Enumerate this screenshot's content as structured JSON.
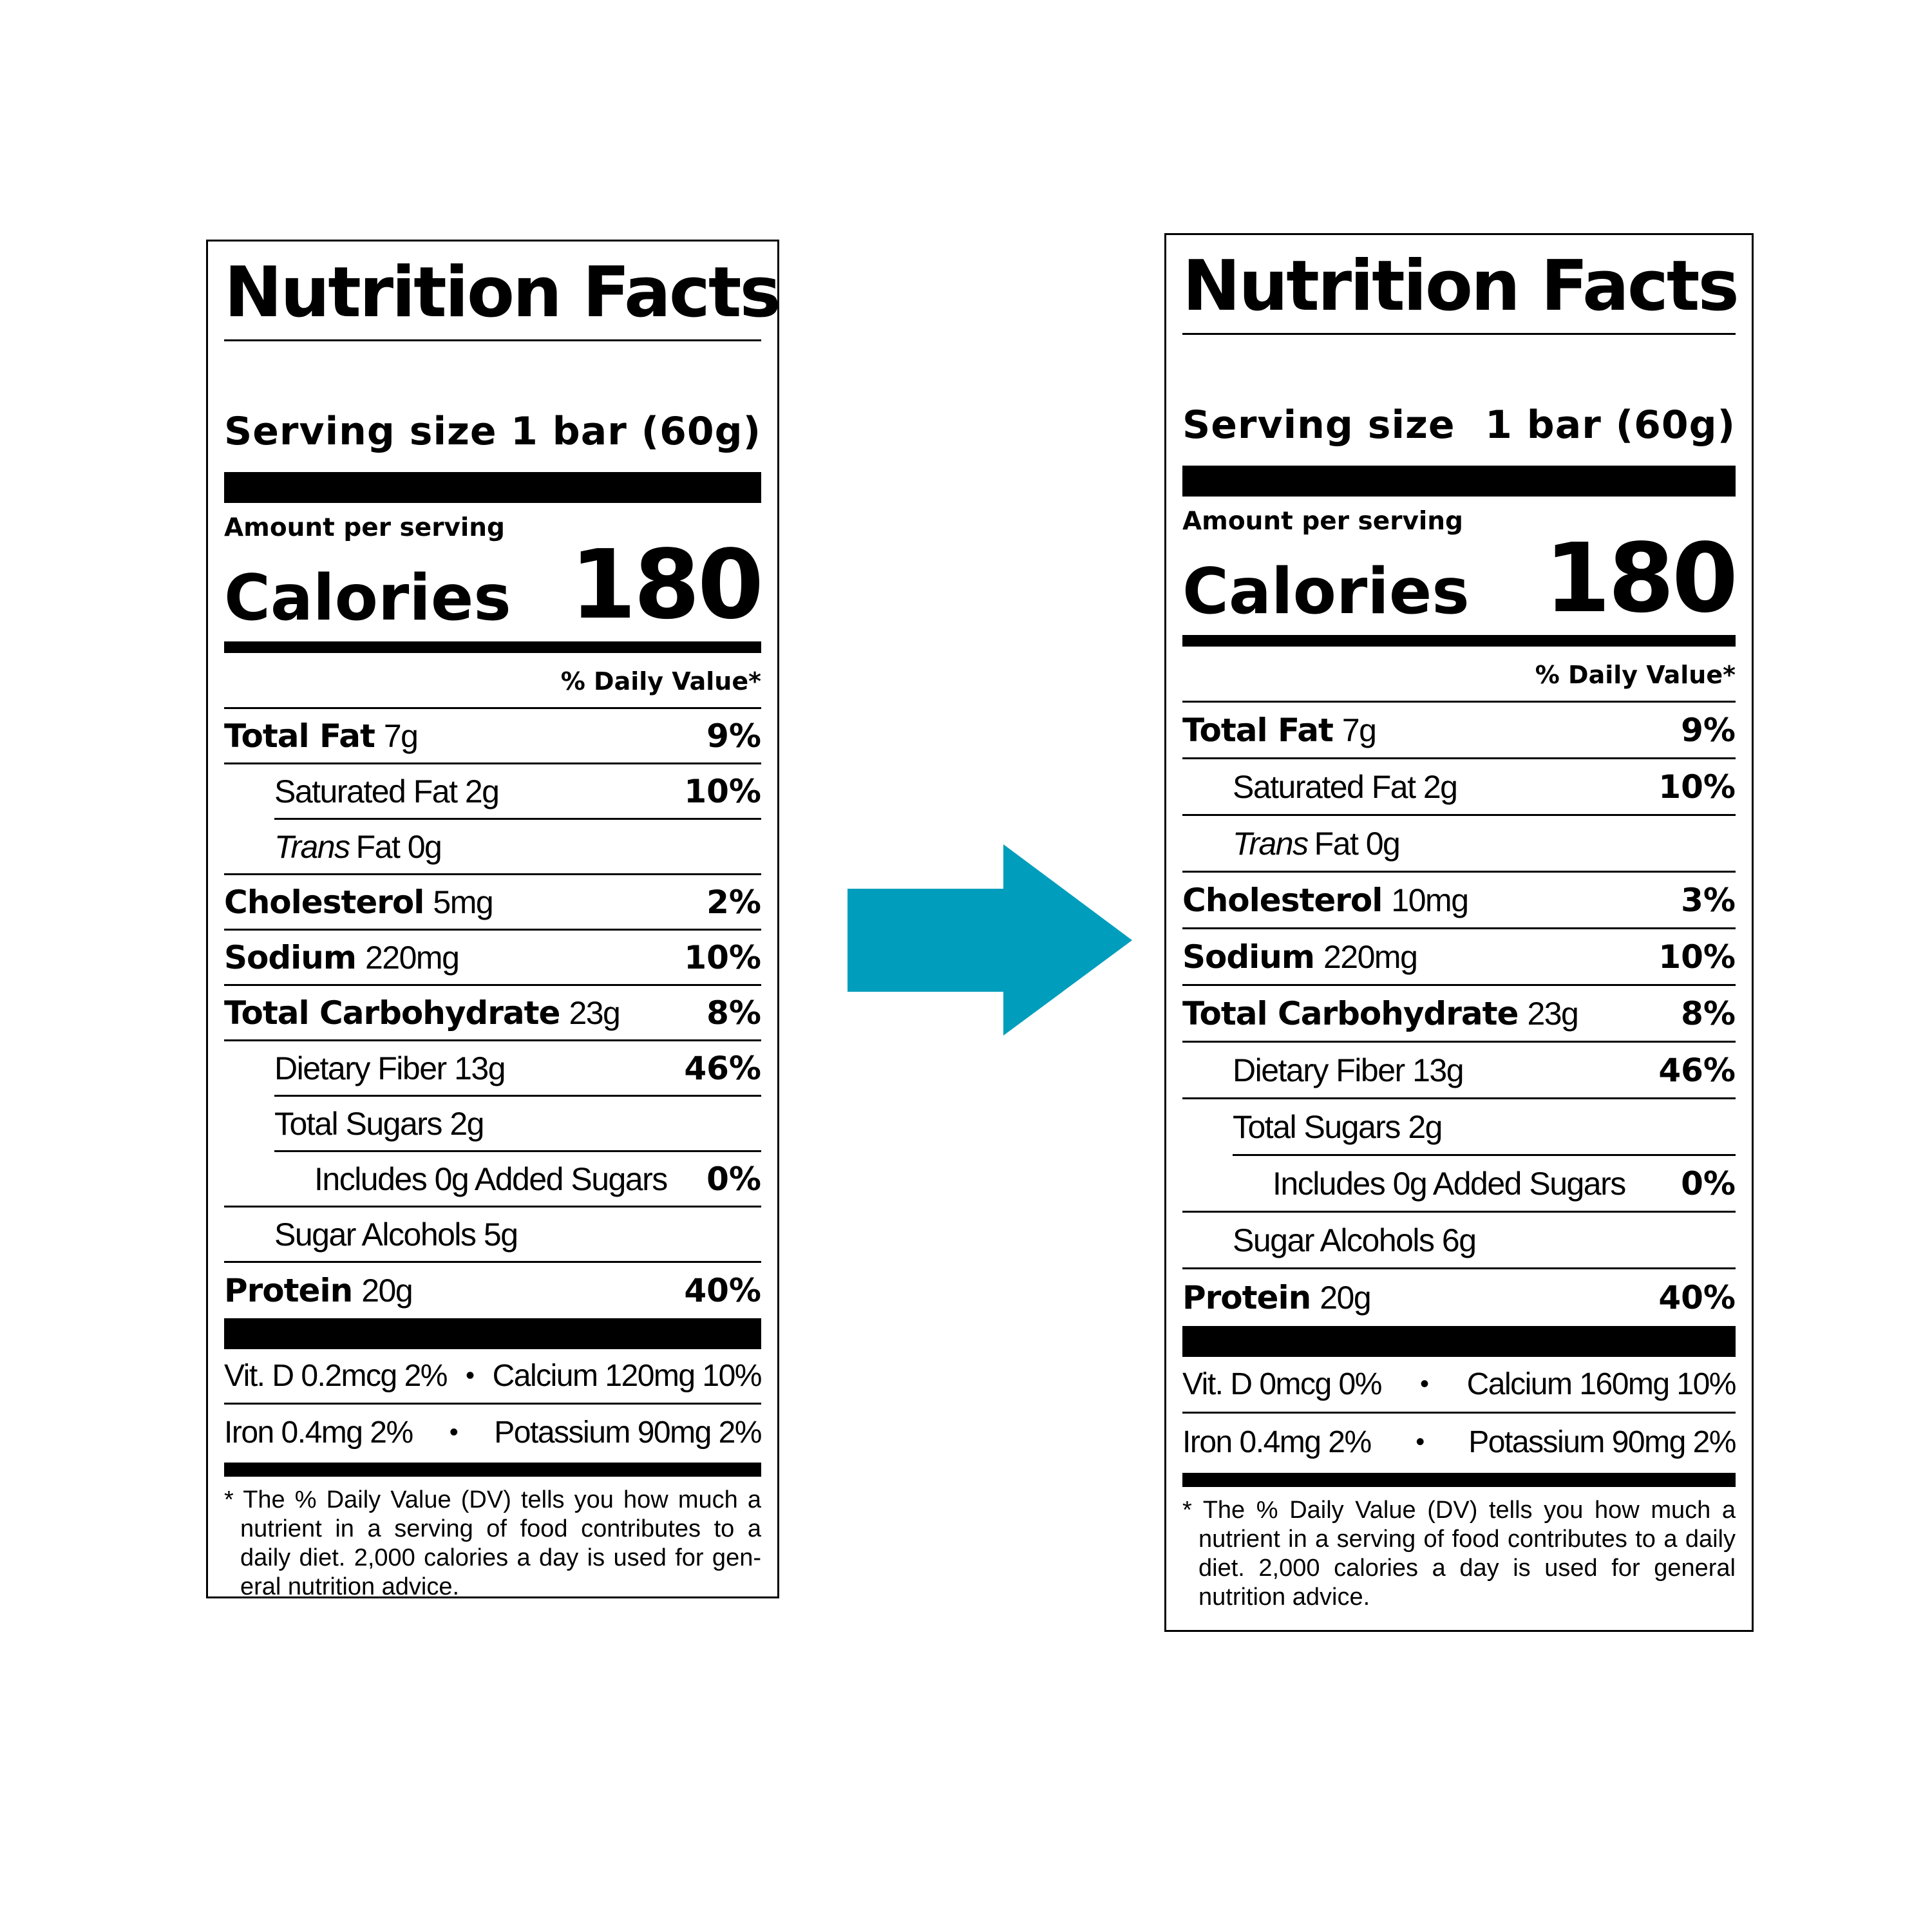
{
  "arrow": {
    "color": "#009ebc"
  },
  "labels": {
    "before": {
      "title": "Nutrition Facts",
      "serving_label": "Serving size",
      "serving_value": "1 bar (60g)",
      "amount_per_serving": "Amount per serving",
      "calories_label": "Calories",
      "calories_value": "180",
      "dv_header": "% Daily Value*",
      "total_fat": {
        "label": "Total Fat",
        "amount": "7g",
        "dv": "9%"
      },
      "saturated_fat": {
        "label": "Saturated Fat 2g",
        "dv": "10%"
      },
      "trans_fat": {
        "italic": "Trans",
        "label": "Fat 0g"
      },
      "cholesterol": {
        "label": "Cholesterol",
        "amount": "5mg",
        "dv": "2%"
      },
      "sodium": {
        "label": "Sodium",
        "amount": "220mg",
        "dv": "10%"
      },
      "total_carb": {
        "label": "Total Carbohydrate",
        "amount": "23g",
        "dv": "8%"
      },
      "dietary_fiber": {
        "label": "Dietary Fiber 13g",
        "dv": "46%"
      },
      "total_sugars": {
        "label": "Total Sugars 2g"
      },
      "added_sugars": {
        "label": "Includes 0g Added Sugars",
        "dv": "0%"
      },
      "sugar_alcohols": {
        "label": "Sugar Alcohols 5g"
      },
      "protein": {
        "label": "Protein",
        "amount": "20g",
        "dv": "40%"
      },
      "vitamins": {
        "vit_d": "Vit. D 0.2mcg 2%",
        "calcium": "Calcium 120mg 10%",
        "iron": "Iron 0.4mg 2%",
        "potassium": "Potassium 90mg 2%",
        "separator": "•"
      },
      "footnote": "* The % Daily Value (DV) tells you how much a nutrient in a serving of food contributes to a daily diet. 2,000 calories a day is used for gen-eral nutrition advice."
    },
    "after": {
      "title": "Nutrition Facts",
      "serving_label": "Serving size",
      "serving_value": "1 bar (60g)",
      "amount_per_serving": "Amount per serving",
      "calories_label": "Calories",
      "calories_value": "180",
      "dv_header": "% Daily Value*",
      "total_fat": {
        "label": "Total Fat",
        "amount": "7g",
        "dv": "9%"
      },
      "saturated_fat": {
        "label": "Saturated Fat 2g",
        "dv": "10%"
      },
      "trans_fat": {
        "italic": "Trans",
        "label": "Fat 0g"
      },
      "cholesterol": {
        "label": "Cholesterol",
        "amount": "10mg",
        "dv": "3%"
      },
      "sodium": {
        "label": "Sodium",
        "amount": "220mg",
        "dv": "10%"
      },
      "total_carb": {
        "label": "Total Carbohydrate",
        "amount": "23g",
        "dv": "8%"
      },
      "dietary_fiber": {
        "label": "Dietary Fiber 13g",
        "dv": "46%"
      },
      "total_sugars": {
        "label": "Total Sugars 2g"
      },
      "added_sugars": {
        "label": "Includes 0g Added Sugars",
        "dv": "0%"
      },
      "sugar_alcohols": {
        "label": "Sugar Alcohols 6g"
      },
      "protein": {
        "label": "Protein",
        "amount": "20g",
        "dv": "40%"
      },
      "vitamins": {
        "vit_d": "Vit. D 0mcg 0%",
        "calcium": "Calcium 160mg 10%",
        "iron": "Iron 0.4mg 2%",
        "potassium": "Potassium 90mg 2%",
        "separator": "•"
      },
      "footnote": "* The % Daily Value (DV) tells you how much a nutrient in a serving of food contributes to a daily diet. 2,000 calories a day is used for general nutrition advice."
    }
  }
}
